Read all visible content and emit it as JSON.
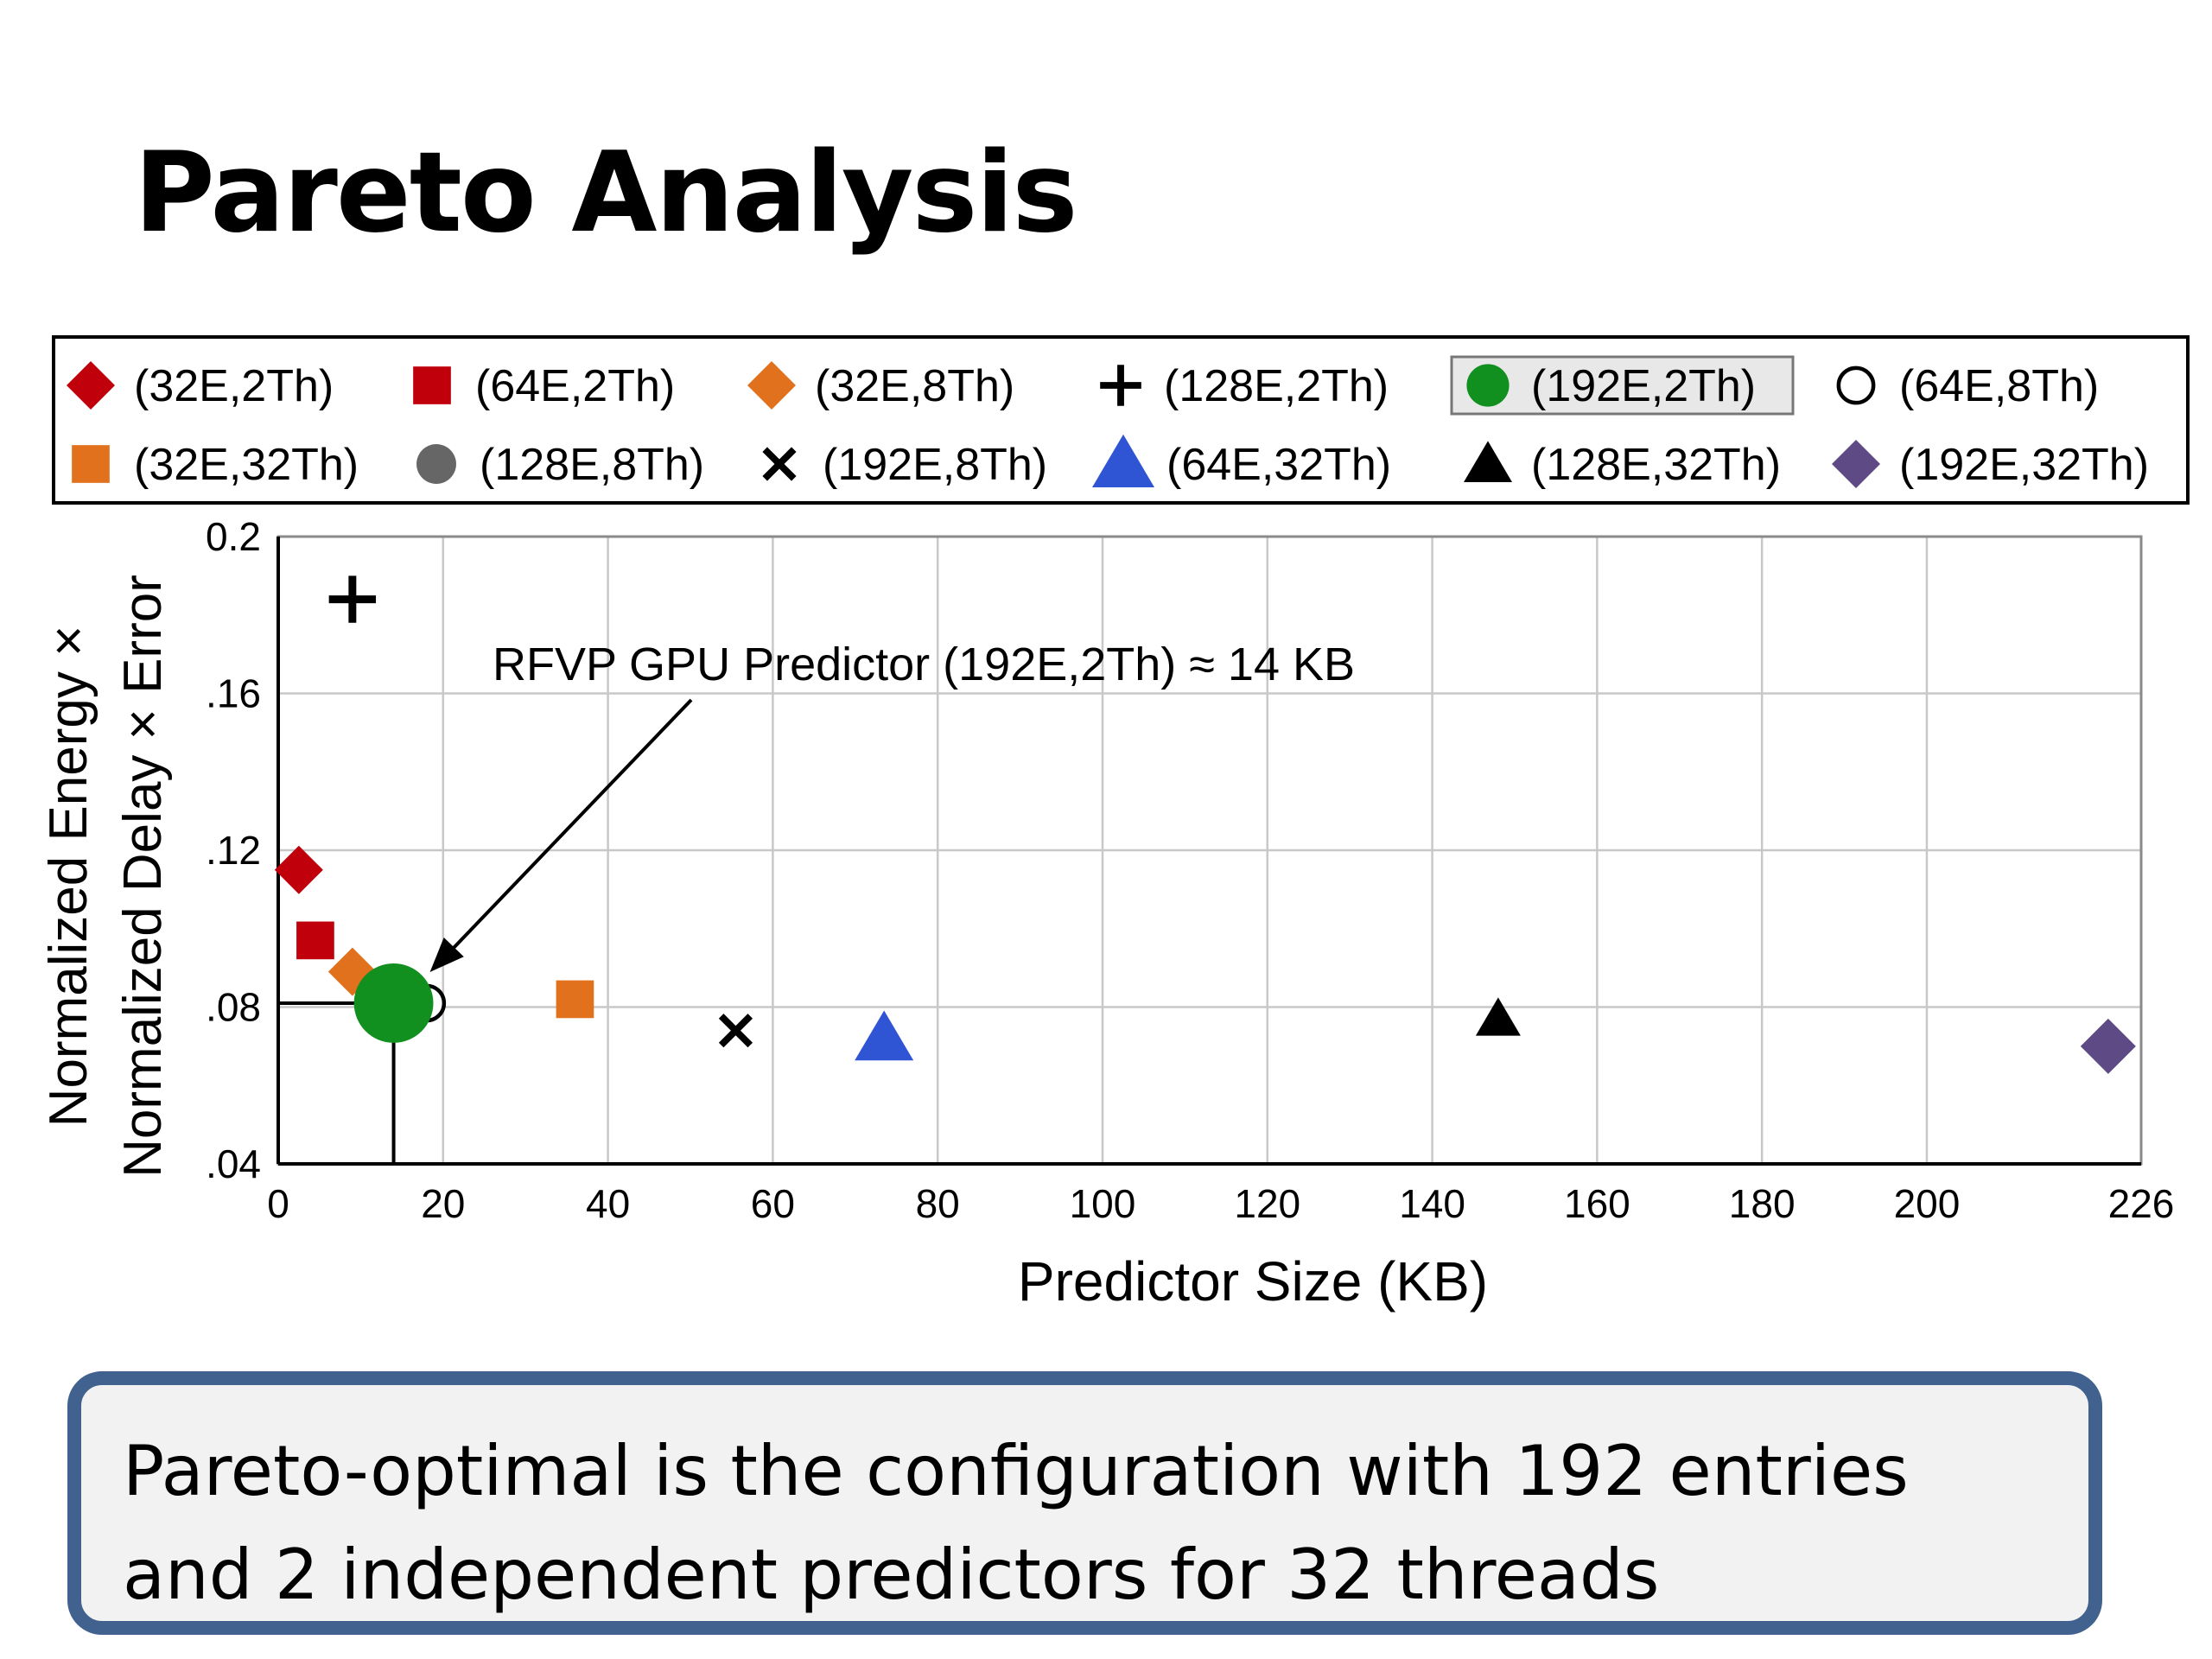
{
  "slide": {
    "title": "Pareto Analysis",
    "callout_lines": [
      "Pareto-optimal is the configuration with 192 entries",
      "and 2 independent predictors for 32 threads"
    ]
  },
  "chart_data": {
    "type": "scatter",
    "xlabel": "Predictor Size (KB)",
    "ylabel_lines": [
      "Normalized Energy ×",
      "Normalized Delay × Error"
    ],
    "xlim": [
      0,
      226
    ],
    "ylim": [
      0.04,
      0.2
    ],
    "x_ticks": [
      0,
      20,
      40,
      60,
      80,
      100,
      120,
      140,
      160,
      180,
      200,
      226
    ],
    "x_tick_labels": [
      "0",
      "20",
      "40",
      "60",
      "80",
      "100",
      "120",
      "140",
      "160",
      "180",
      "200",
      "226"
    ],
    "y_ticks": [
      0.04,
      0.08,
      0.12,
      0.16,
      0.2
    ],
    "y_tick_labels": [
      ".04",
      ".08",
      ".12",
      ".16",
      "0.2"
    ],
    "grid": true,
    "legend_position": "top",
    "annotation": {
      "text": "RFVP GPU Predictor (192E,2Th) ≈ 14 KB",
      "target_series": "(192E,2Th)"
    },
    "highlight_series": "(192E,2Th)",
    "series": [
      {
        "name": "(32E,2Th)",
        "marker": "diamond",
        "color": "#c0000b",
        "x": 2.5,
        "y": 0.115
      },
      {
        "name": "(64E,2Th)",
        "marker": "square",
        "color": "#c0000b",
        "x": 4.5,
        "y": 0.097
      },
      {
        "name": "(32E,8Th)",
        "marker": "diamond",
        "color": "#e2711d",
        "x": 9,
        "y": 0.089
      },
      {
        "name": "(128E,2Th)",
        "marker": "plus",
        "color": "#000000",
        "x": 9,
        "y": 0.184
      },
      {
        "name": "(192E,2Th)",
        "marker": "circle",
        "color": "#11901f",
        "x": 14,
        "y": 0.081
      },
      {
        "name": "(64E,8Th)",
        "marker": "circle-open",
        "color": "#000000",
        "x": 18,
        "y": 0.081
      },
      {
        "name": "(32E,32Th)",
        "marker": "square",
        "color": "#e2711d",
        "x": 36,
        "y": 0.082
      },
      {
        "name": "(128E,8Th)",
        "marker": "circle",
        "color": "#666666",
        "x": null,
        "y": null
      },
      {
        "name": "(192E,8Th)",
        "marker": "x",
        "color": "#000000",
        "x": 55.5,
        "y": 0.074
      },
      {
        "name": "(64E,32Th)",
        "marker": "triangle",
        "color": "#2f55d4",
        "x": 73.5,
        "y": 0.072
      },
      {
        "name": "(128E,32Th)",
        "marker": "triangle-small",
        "color": "#000000",
        "x": 148,
        "y": 0.077
      },
      {
        "name": "(192E,32Th)",
        "marker": "diamond",
        "color": "#5e4a85",
        "x": 222,
        "y": 0.07
      }
    ]
  }
}
